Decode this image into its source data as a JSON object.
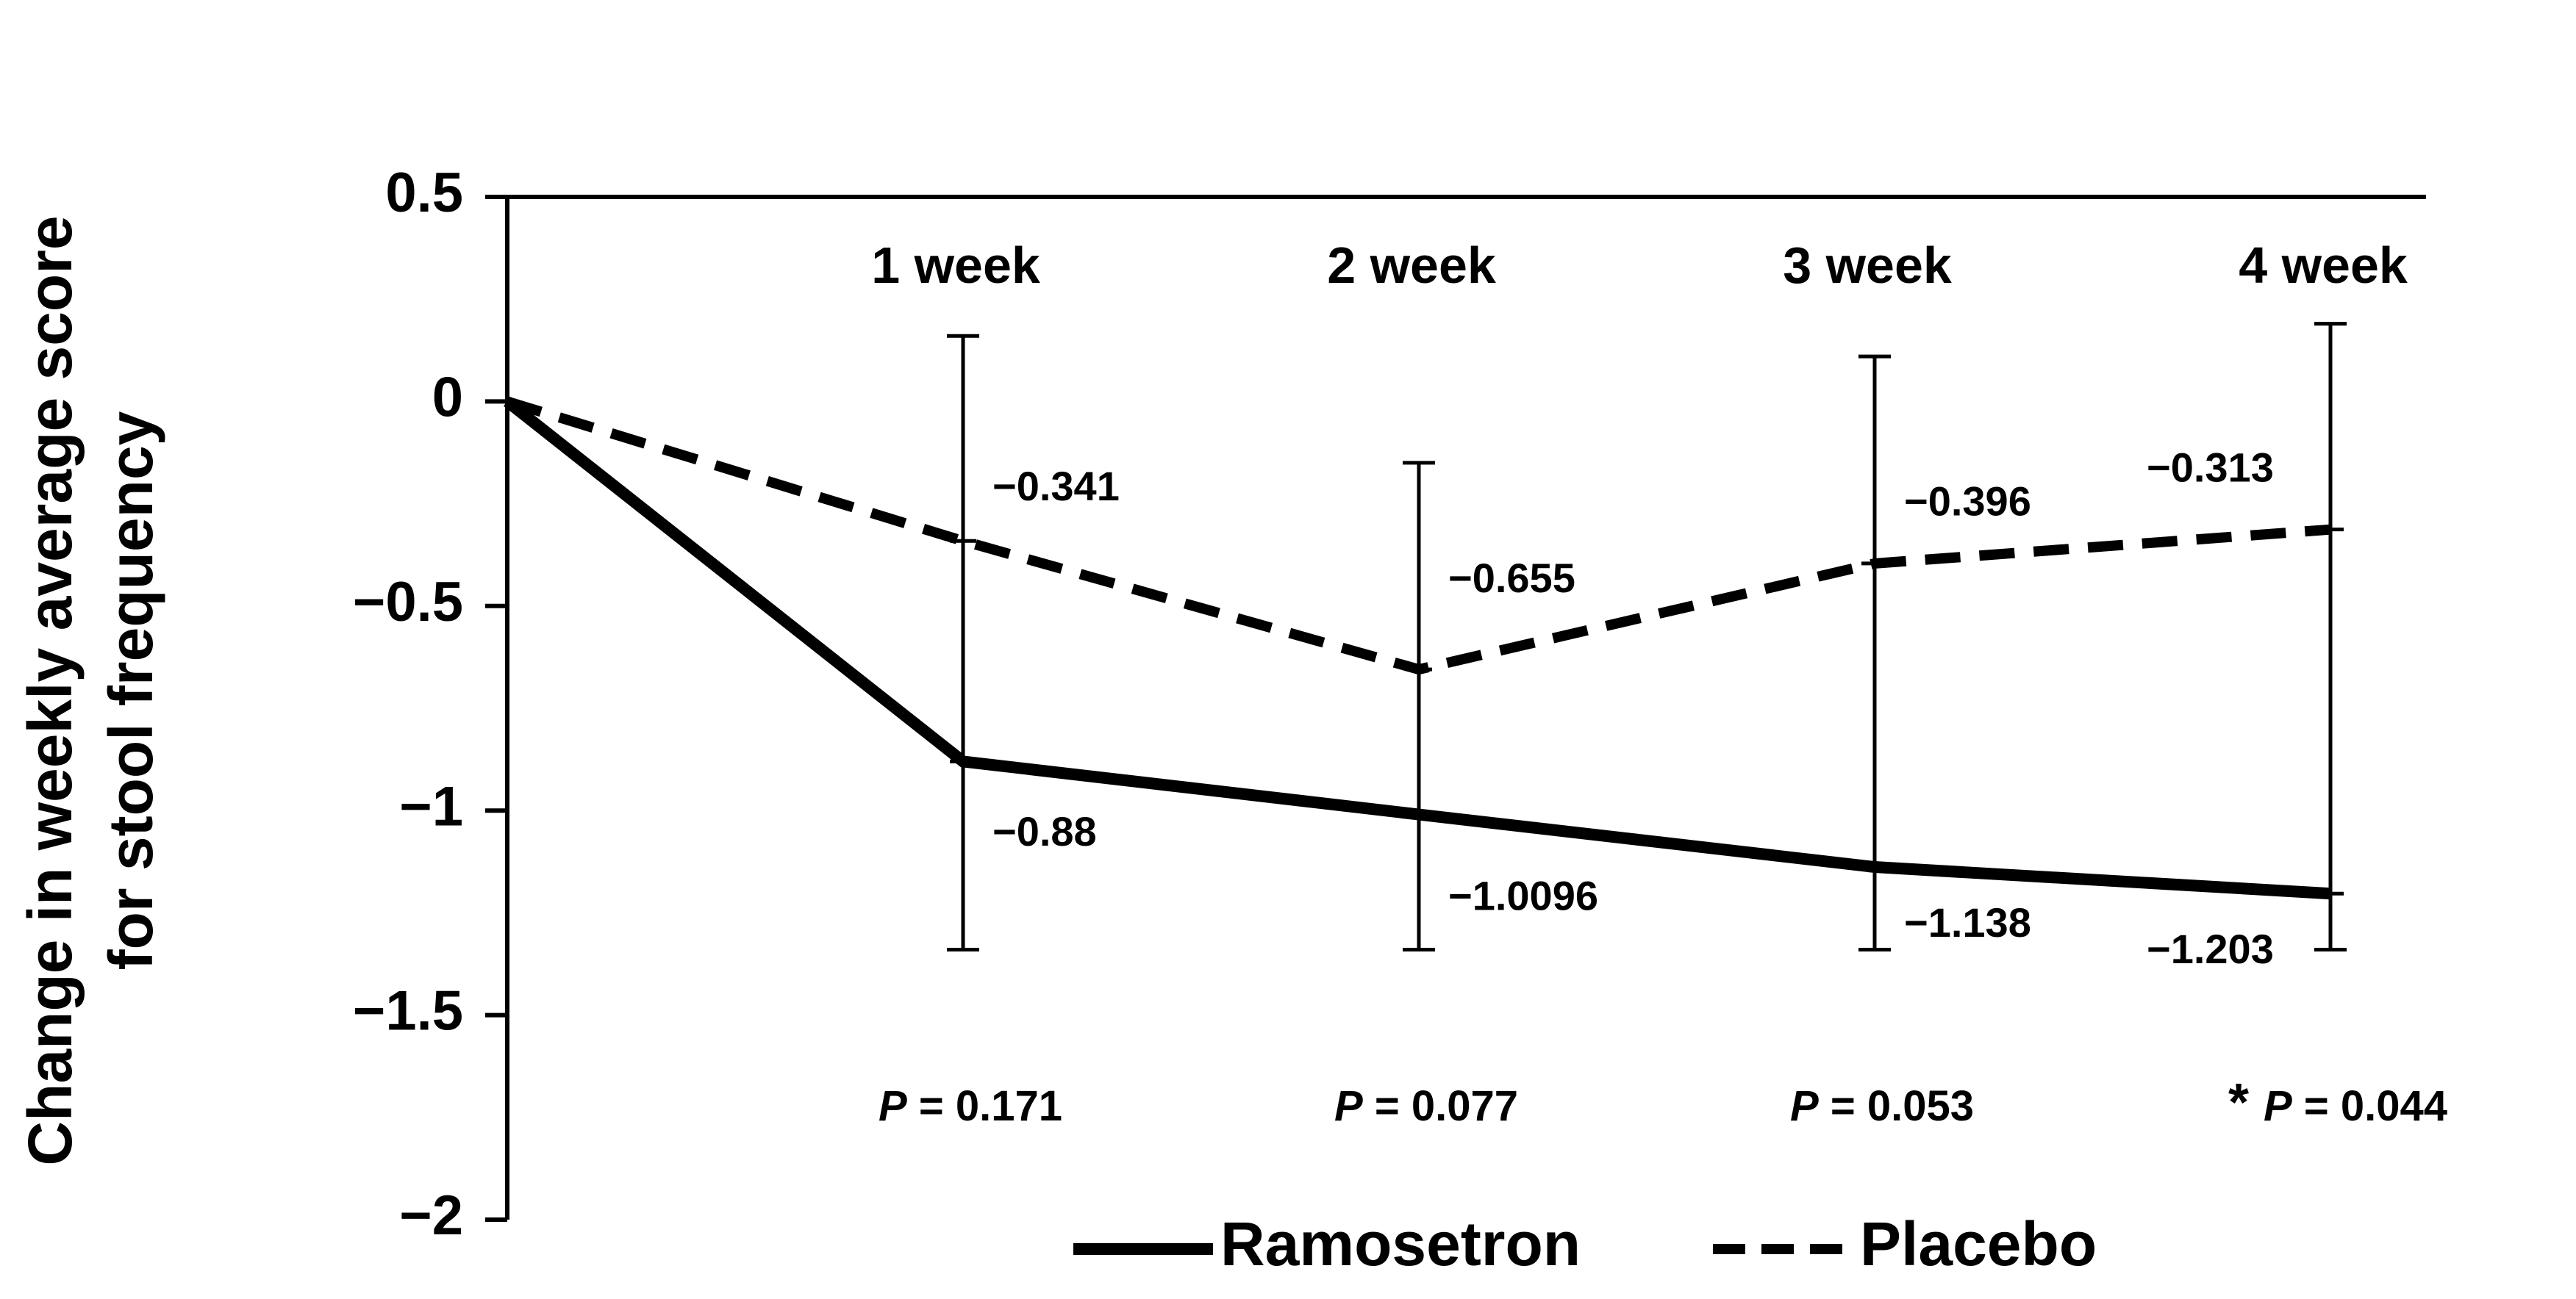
{
  "chart_data": {
    "type": "line",
    "title": "",
    "ylabel_lines": [
      "Change in weekly average score",
      "for stool frequency"
    ],
    "xlabel": "",
    "ylim": [
      -2,
      0.5
    ],
    "yticks": [
      {
        "value": 0.5,
        "label": "0.5"
      },
      {
        "value": 0,
        "label": "0"
      },
      {
        "value": -0.5,
        "label": "−0.5"
      },
      {
        "value": -1,
        "label": "−1"
      },
      {
        "value": -1.5,
        "label": "−1.5"
      },
      {
        "value": -2,
        "label": "−2"
      }
    ],
    "x": [
      0,
      1,
      2,
      3,
      4
    ],
    "categories": [
      "",
      "1 week",
      "2 week",
      "3 week",
      "4 week"
    ],
    "series": [
      {
        "name": "Ramosetron",
        "style": "solid",
        "values": [
          0,
          -0.88,
          -1.0096,
          -1.138,
          -1.203
        ],
        "labels": [
          "",
          "−0.88",
          "−1.0096",
          "−1.138",
          "−1.203"
        ]
      },
      {
        "name": "Placebo",
        "style": "dashed",
        "values": [
          0,
          -0.341,
          -0.655,
          -0.396,
          -0.313
        ],
        "labels": [
          "",
          "−0.341",
          "−0.655",
          "−0.396",
          "−0.313"
        ]
      }
    ],
    "error_bars": [
      {
        "x": 1,
        "upper": 0.16,
        "lower": -1.34
      },
      {
        "x": 2,
        "upper": -0.15,
        "lower": -1.34
      },
      {
        "x": 3,
        "upper": 0.11,
        "lower": -1.34
      },
      {
        "x": 4,
        "upper": 0.19,
        "lower": -1.34
      }
    ],
    "p_values": [
      {
        "x": 1,
        "prefix": "",
        "label": "P",
        "value": " = 0.171"
      },
      {
        "x": 2,
        "prefix": "",
        "label": "P",
        "value": " = 0.077"
      },
      {
        "x": 3,
        "prefix": "",
        "label": "P",
        "value": " = 0.053"
      },
      {
        "x": 4,
        "prefix": "* ",
        "label": "P",
        "value": " = 0.044"
      }
    ],
    "legend": [
      {
        "name": "Ramosetron",
        "style": "solid"
      },
      {
        "name": "Placebo",
        "style": "dashed"
      }
    ],
    "legend_position": "bottom",
    "grid": false
  },
  "colors": {
    "line": "#000000",
    "background": "#ffffff"
  }
}
